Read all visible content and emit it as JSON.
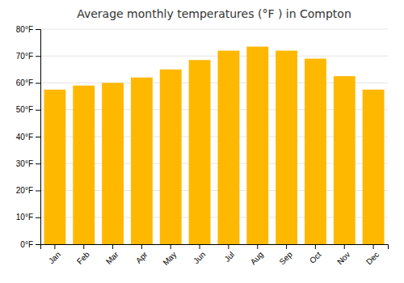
{
  "chart_data": {
    "type": "bar",
    "title": "Average monthly temperatures (°F ) in Compton",
    "categories": [
      "Jan",
      "Feb",
      "Mar",
      "Apr",
      "May",
      "Jun",
      "Jul",
      "Aug",
      "Sep",
      "Oct",
      "Nov",
      "Dec"
    ],
    "values": [
      57.5,
      59.0,
      60.0,
      62.0,
      65.0,
      68.5,
      72.0,
      73.5,
      72.0,
      69.0,
      62.5,
      57.5
    ],
    "color": "#FFB800",
    "ylim": [
      0,
      80
    ],
    "yticks": [
      {
        "value": 0,
        "label": "0°F"
      },
      {
        "value": 10,
        "label": "10°F"
      },
      {
        "value": 20,
        "label": "20°F"
      },
      {
        "value": 30,
        "label": "30°F"
      },
      {
        "value": 40,
        "label": "40°F"
      },
      {
        "value": 50,
        "label": "50°F"
      },
      {
        "value": 60,
        "label": "60°F"
      },
      {
        "value": 70,
        "label": "70°F"
      },
      {
        "value": 80,
        "label": "80°F"
      }
    ],
    "grid": true
  }
}
